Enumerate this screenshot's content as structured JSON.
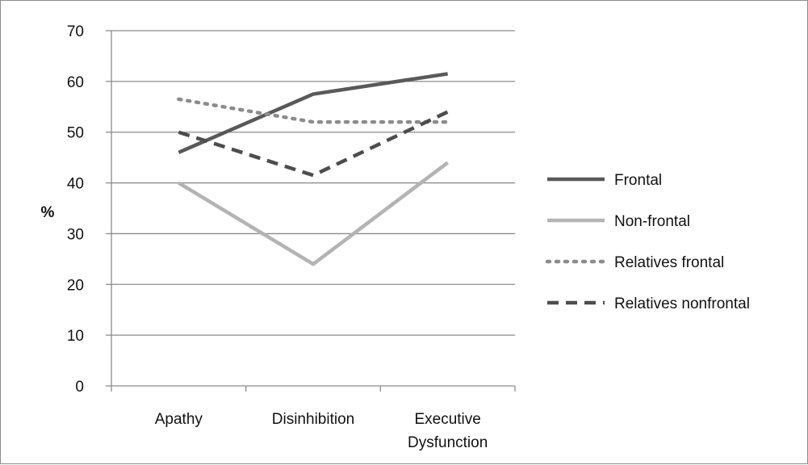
{
  "chart_data": {
    "type": "line",
    "title": "",
    "xlabel": "",
    "ylabel": "%",
    "ylim": [
      0,
      70
    ],
    "yticks": [
      0,
      10,
      20,
      30,
      40,
      50,
      60,
      70
    ],
    "grid": true,
    "legend_position": "right",
    "categories": [
      [
        "Apathy"
      ],
      [
        "Disinhibition"
      ],
      [
        "Executive",
        "Dysfunction"
      ]
    ],
    "series": [
      {
        "name": "Frontal",
        "values": [
          46,
          57.5,
          61.5
        ],
        "color": "#595959",
        "dash": "solid"
      },
      {
        "name": "Non-frontal",
        "values": [
          40,
          24,
          44
        ],
        "color": "#b3b3b3",
        "dash": "solid"
      },
      {
        "name": "Relatives frontal",
        "values": [
          56.5,
          52,
          52
        ],
        "color": "#8c8c8c",
        "dash": "dotted"
      },
      {
        "name": "Relatives nonfrontal",
        "values": [
          50,
          41.5,
          54
        ],
        "color": "#4d4d4d",
        "dash": "dashed"
      }
    ]
  }
}
